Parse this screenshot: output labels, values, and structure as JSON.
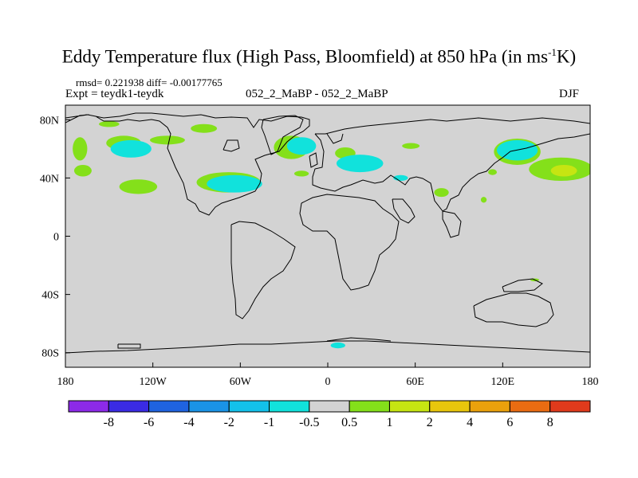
{
  "title": {
    "main": "Eddy Temperature flux (High Pass, Bloomfield) at 850 hPa (in ms",
    "sup": "-1",
    "end": "K)"
  },
  "header": {
    "stats": "rmsd= 0.221938 diff= -0.00177765",
    "experiment": "Expt = teydk1-teydk",
    "center": "052_2_MaBP - 052_2_MaBP",
    "season": "DJF"
  },
  "colors": {
    "background": "#d3d3d3",
    "coast": "#000000",
    "palette": [
      "#8c2ae8",
      "#3a2be4",
      "#1f63e0",
      "#1a93e6",
      "#13c1ea",
      "#11e2dc",
      "#d3d3d3",
      "#84e01a",
      "#c6e512",
      "#e8c60c",
      "#eaa10c",
      "#ea6c12",
      "#e03a1c"
    ]
  },
  "chart_data": {
    "type": "heatmap",
    "title": "Eddy Temperature flux (High Pass, Bloomfield) at 850 hPa (in ms-1K)",
    "xlabel": "",
    "ylabel": "",
    "xlim": [
      -180,
      180
    ],
    "ylim": [
      -90,
      90
    ],
    "x_ticks": [
      {
        "value": -180,
        "label": "180"
      },
      {
        "value": -120,
        "label": "120W"
      },
      {
        "value": -60,
        "label": "60W"
      },
      {
        "value": 0,
        "label": "0"
      },
      {
        "value": 60,
        "label": "60E"
      },
      {
        "value": 120,
        "label": "120E"
      },
      {
        "value": 180,
        "label": "180"
      }
    ],
    "y_ticks": [
      {
        "value": 80,
        "label": "80N"
      },
      {
        "value": 40,
        "label": "40N"
      },
      {
        "value": 0,
        "label": "0"
      },
      {
        "value": -40,
        "label": "40S"
      },
      {
        "value": -80,
        "label": "80S"
      }
    ],
    "colorbar": {
      "levels": [
        "-8",
        "-6",
        "-4",
        "-2",
        "-1",
        "-0.5",
        "0.5",
        "1",
        "2",
        "4",
        "6",
        "8"
      ]
    },
    "regions": [
      {
        "name": "green-north-america-1",
        "lon": -150,
        "lat": 77,
        "rlon": 7,
        "rlat": 2,
        "level": 7
      },
      {
        "name": "green-north-america-2",
        "lon": -85,
        "lat": 74,
        "rlon": 9,
        "rlat": 3,
        "level": 7
      },
      {
        "name": "green-alaska",
        "lon": -170,
        "lat": 60,
        "rlon": 5,
        "rlat": 8,
        "level": 7
      },
      {
        "name": "green-west-canada",
        "lon": -140,
        "lat": 64,
        "rlon": 12,
        "rlat": 5,
        "level": 7
      },
      {
        "name": "cyan-west-canada",
        "lon": -135,
        "lat": 60,
        "rlon": 14,
        "rlat": 6,
        "level": 5
      },
      {
        "name": "green-pacific-north",
        "lon": -110,
        "lat": 66,
        "rlon": 12,
        "rlat": 3,
        "level": 7
      },
      {
        "name": "green-north-pacific-east",
        "lon": -168,
        "lat": 45,
        "rlon": 6,
        "rlat": 4,
        "level": 7
      },
      {
        "name": "green-east-pacific",
        "lon": -130,
        "lat": 34,
        "rlon": 13,
        "rlat": 5,
        "level": 7
      },
      {
        "name": "green-us-east",
        "lon": -68,
        "lat": 37,
        "rlon": 22,
        "rlat": 7,
        "level": 7
      },
      {
        "name": "cyan-us-east",
        "lon": -64,
        "lat": 36,
        "rlon": 19,
        "rlat": 6,
        "level": 5
      },
      {
        "name": "green-greenland",
        "lon": -25,
        "lat": 61,
        "rlon": 12,
        "rlat": 8,
        "level": 7
      },
      {
        "name": "yellow-greenland",
        "lon": -22,
        "lat": 60,
        "rlon": 4,
        "rlat": 2,
        "level": 8
      },
      {
        "name": "cyan-greenland",
        "lon": -18,
        "lat": 62,
        "rlon": 10,
        "rlat": 6,
        "level": 5
      },
      {
        "name": "green-atlantic",
        "lon": -18,
        "lat": 43,
        "rlon": 5,
        "rlat": 2,
        "level": 7
      },
      {
        "name": "green-scandinavia",
        "lon": 12,
        "lat": 57,
        "rlon": 7,
        "rlat": 4,
        "level": 7
      },
      {
        "name": "cyan-europe",
        "lon": 22,
        "lat": 50,
        "rlon": 16,
        "rlat": 6,
        "level": 5
      },
      {
        "name": "green-siberia-west",
        "lon": 57,
        "lat": 62,
        "rlon": 6,
        "rlat": 2,
        "level": 7
      },
      {
        "name": "cyan-caspian",
        "lon": 50,
        "lat": 40,
        "rlon": 5,
        "rlat": 2,
        "level": 5
      },
      {
        "name": "green-india",
        "lon": 78,
        "lat": 30,
        "rlon": 5,
        "rlat": 3,
        "level": 7
      },
      {
        "name": "green-southeast-asia",
        "lon": 107,
        "lat": 25,
        "rlon": 2,
        "rlat": 2,
        "level": 7
      },
      {
        "name": "green-far-east",
        "lon": 130,
        "lat": 58,
        "rlon": 16,
        "rlat": 9,
        "level": 7
      },
      {
        "name": "cyan-far-east",
        "lon": 130,
        "lat": 59,
        "rlon": 14,
        "rlat": 7,
        "level": 5
      },
      {
        "name": "green-north-pacific-west",
        "lon": 160,
        "lat": 46,
        "rlon": 22,
        "rlat": 8,
        "level": 7
      },
      {
        "name": "yellow-north-pacific-west",
        "lon": 162,
        "lat": 45,
        "rlon": 9,
        "rlat": 4,
        "level": 8
      },
      {
        "name": "green-japan",
        "lon": 113,
        "lat": 44,
        "rlon": 3,
        "rlat": 2,
        "level": 7
      },
      {
        "name": "cyan-antarctic",
        "lon": 7,
        "lat": -75,
        "rlon": 5,
        "rlat": 2,
        "level": 5
      },
      {
        "name": "green-australia-east",
        "lon": 142,
        "lat": -30,
        "rlon": 3,
        "rlat": 1,
        "level": 7
      }
    ]
  }
}
